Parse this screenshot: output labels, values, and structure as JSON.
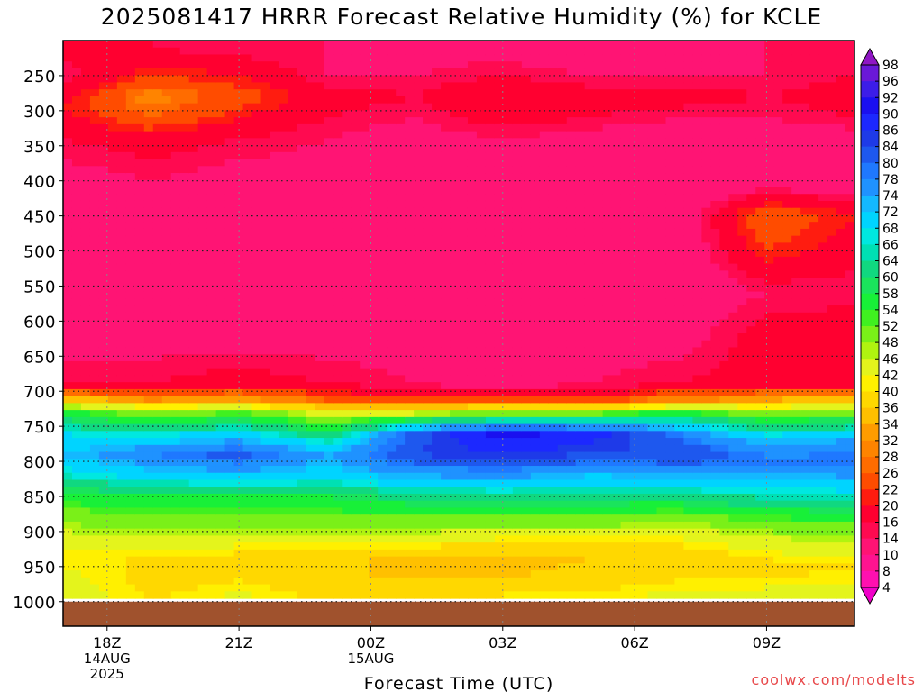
{
  "title": "2025081417 HRRR Forecast Relative Humidity (%) for KCLE",
  "credit": "coolwx.com/modelts",
  "colors": {
    "ground": "#a0522d",
    "frame": "#000000",
    "grid": "#666666"
  },
  "chart_data": {
    "type": "heatmap",
    "title": "2025081417 HRRR Forecast Relative Humidity (%) for KCLE",
    "xlabel": "Forecast Time (UTC)",
    "ylabel": "",
    "x_range_hours": [
      17,
      35
    ],
    "y_range_hpa": [
      1035,
      200
    ],
    "y_ticks": [
      250,
      300,
      350,
      400,
      450,
      500,
      550,
      600,
      650,
      700,
      750,
      800,
      850,
      900,
      950,
      1000
    ],
    "x_ticks": [
      {
        "hour": 18,
        "label": "18Z",
        "sub": [
          "14AUG",
          "2025"
        ]
      },
      {
        "hour": 21,
        "label": "21Z",
        "sub": []
      },
      {
        "hour": 24,
        "label": "00Z",
        "sub": [
          "15AUG"
        ]
      },
      {
        "hour": 27,
        "label": "03Z",
        "sub": []
      },
      {
        "hour": 30,
        "label": "06Z",
        "sub": []
      },
      {
        "hour": 33,
        "label": "09Z",
        "sub": []
      }
    ],
    "surface_pressure_hpa": 1000,
    "colorbar_levels": [
      98,
      96,
      92,
      90,
      86,
      84,
      80,
      78,
      74,
      72,
      68,
      66,
      64,
      60,
      58,
      54,
      52,
      48,
      46,
      42,
      40,
      36,
      34,
      32,
      28,
      26,
      22,
      20,
      16,
      14,
      10,
      8,
      4
    ],
    "colorbar_colors": [
      "#8f16c4",
      "#6a18d8",
      "#3c1de8",
      "#1a10f0",
      "#1c28ff",
      "#1e3ae8",
      "#1e58ee",
      "#1f78ff",
      "#1f92ff",
      "#14b8ff",
      "#00d4ff",
      "#00e8e0",
      "#00e0b4",
      "#10d880",
      "#1ae45c",
      "#18f038",
      "#40f020",
      "#7af018",
      "#b0f410",
      "#e4f41c",
      "#fff000",
      "#ffd800",
      "#ffc000",
      "#ff9c00",
      "#ff8400",
      "#ff6c00",
      "#ff4c00",
      "#ff1c10",
      "#ff0030",
      "#ff0a50",
      "#ff1474",
      "#ff1490",
      "#ff10b0",
      "#f000c8"
    ],
    "rh_profiles": [
      {
        "hour": 17.0,
        "points": [
          [
            210,
            18
          ],
          [
            250,
            14
          ],
          [
            290,
            20
          ],
          [
            340,
            16
          ],
          [
            400,
            12
          ],
          [
            450,
            12
          ],
          [
            500,
            12
          ],
          [
            560,
            10
          ],
          [
            620,
            12
          ],
          [
            690,
            16
          ],
          [
            710,
            34
          ],
          [
            730,
            56
          ],
          [
            760,
            68
          ],
          [
            790,
            72
          ],
          [
            820,
            66
          ],
          [
            850,
            56
          ],
          [
            880,
            50
          ],
          [
            910,
            44
          ],
          [
            940,
            40
          ],
          [
            970,
            44
          ],
          [
            1000,
            46
          ]
        ]
      },
      {
        "hour": 19.0,
        "points": [
          [
            210,
            16
          ],
          [
            250,
            22
          ],
          [
            280,
            30
          ],
          [
            310,
            26
          ],
          [
            340,
            18
          ],
          [
            400,
            14
          ],
          [
            450,
            12
          ],
          [
            500,
            12
          ],
          [
            560,
            12
          ],
          [
            620,
            12
          ],
          [
            690,
            16
          ],
          [
            710,
            30
          ],
          [
            730,
            48
          ],
          [
            760,
            66
          ],
          [
            790,
            78
          ],
          [
            820,
            70
          ],
          [
            850,
            58
          ],
          [
            880,
            50
          ],
          [
            910,
            46
          ],
          [
            940,
            40
          ],
          [
            970,
            38
          ],
          [
            1000,
            40
          ]
        ]
      },
      {
        "hour": 21.0,
        "points": [
          [
            210,
            14
          ],
          [
            250,
            20
          ],
          [
            280,
            24
          ],
          [
            310,
            20
          ],
          [
            340,
            16
          ],
          [
            400,
            12
          ],
          [
            450,
            10
          ],
          [
            500,
            10
          ],
          [
            560,
            12
          ],
          [
            620,
            12
          ],
          [
            690,
            18
          ],
          [
            710,
            32
          ],
          [
            735,
            56
          ],
          [
            760,
            70
          ],
          [
            790,
            82
          ],
          [
            820,
            72
          ],
          [
            850,
            58
          ],
          [
            880,
            52
          ],
          [
            910,
            44
          ],
          [
            940,
            38
          ],
          [
            970,
            40
          ],
          [
            1000,
            44
          ]
        ]
      },
      {
        "hour": 23.0,
        "points": [
          [
            210,
            14
          ],
          [
            250,
            14
          ],
          [
            280,
            18
          ],
          [
            310,
            16
          ],
          [
            340,
            14
          ],
          [
            400,
            12
          ],
          [
            450,
            12
          ],
          [
            500,
            14
          ],
          [
            560,
            12
          ],
          [
            620,
            12
          ],
          [
            690,
            16
          ],
          [
            710,
            24
          ],
          [
            735,
            46
          ],
          [
            760,
            60
          ],
          [
            790,
            74
          ],
          [
            820,
            70
          ],
          [
            850,
            58
          ],
          [
            880,
            52
          ],
          [
            910,
            44
          ],
          [
            940,
            38
          ],
          [
            970,
            36
          ],
          [
            1000,
            40
          ]
        ]
      },
      {
        "hour": 25.0,
        "points": [
          [
            210,
            12
          ],
          [
            250,
            14
          ],
          [
            280,
            16
          ],
          [
            310,
            14
          ],
          [
            340,
            12
          ],
          [
            400,
            10
          ],
          [
            450,
            14
          ],
          [
            500,
            12
          ],
          [
            560,
            14
          ],
          [
            620,
            12
          ],
          [
            690,
            14
          ],
          [
            710,
            20
          ],
          [
            735,
            50
          ],
          [
            760,
            82
          ],
          [
            790,
            84
          ],
          [
            820,
            74
          ],
          [
            850,
            62
          ],
          [
            880,
            52
          ],
          [
            910,
            44
          ],
          [
            940,
            34
          ],
          [
            970,
            36
          ],
          [
            1000,
            40
          ]
        ]
      },
      {
        "hour": 27.0,
        "points": [
          [
            210,
            12
          ],
          [
            250,
            16
          ],
          [
            280,
            20
          ],
          [
            310,
            18
          ],
          [
            340,
            14
          ],
          [
            400,
            12
          ],
          [
            450,
            12
          ],
          [
            500,
            12
          ],
          [
            560,
            12
          ],
          [
            620,
            12
          ],
          [
            690,
            12
          ],
          [
            710,
            20
          ],
          [
            735,
            56
          ],
          [
            760,
            92
          ],
          [
            790,
            86
          ],
          [
            820,
            76
          ],
          [
            850,
            62
          ],
          [
            880,
            52
          ],
          [
            910,
            42
          ],
          [
            940,
            34
          ],
          [
            970,
            36
          ],
          [
            1000,
            42
          ]
        ]
      },
      {
        "hour": 29.0,
        "points": [
          [
            210,
            10
          ],
          [
            250,
            14
          ],
          [
            280,
            18
          ],
          [
            310,
            16
          ],
          [
            340,
            12
          ],
          [
            400,
            10
          ],
          [
            450,
            10
          ],
          [
            500,
            10
          ],
          [
            560,
            12
          ],
          [
            620,
            12
          ],
          [
            690,
            14
          ],
          [
            710,
            20
          ],
          [
            735,
            56
          ],
          [
            760,
            88
          ],
          [
            790,
            84
          ],
          [
            820,
            72
          ],
          [
            850,
            62
          ],
          [
            880,
            52
          ],
          [
            910,
            42
          ],
          [
            940,
            36
          ],
          [
            970,
            38
          ],
          [
            1000,
            42
          ]
        ]
      },
      {
        "hour": 31.0,
        "points": [
          [
            210,
            12
          ],
          [
            250,
            14
          ],
          [
            280,
            18
          ],
          [
            310,
            14
          ],
          [
            340,
            12
          ],
          [
            400,
            10
          ],
          [
            450,
            10
          ],
          [
            500,
            10
          ],
          [
            560,
            10
          ],
          [
            620,
            12
          ],
          [
            690,
            16
          ],
          [
            710,
            28
          ],
          [
            735,
            60
          ],
          [
            760,
            78
          ],
          [
            790,
            84
          ],
          [
            820,
            74
          ],
          [
            850,
            62
          ],
          [
            880,
            50
          ],
          [
            910,
            42
          ],
          [
            940,
            36
          ],
          [
            970,
            40
          ],
          [
            1000,
            44
          ]
        ]
      },
      {
        "hour": 33.0,
        "points": [
          [
            210,
            14
          ],
          [
            250,
            14
          ],
          [
            280,
            16
          ],
          [
            310,
            14
          ],
          [
            340,
            12
          ],
          [
            400,
            10
          ],
          [
            450,
            26
          ],
          [
            500,
            22
          ],
          [
            560,
            14
          ],
          [
            620,
            18
          ],
          [
            690,
            18
          ],
          [
            710,
            32
          ],
          [
            740,
            56
          ],
          [
            770,
            72
          ],
          [
            800,
            80
          ],
          [
            830,
            70
          ],
          [
            860,
            62
          ],
          [
            890,
            50
          ],
          [
            920,
            44
          ],
          [
            950,
            38
          ],
          [
            980,
            42
          ],
          [
            1000,
            44
          ]
        ]
      },
      {
        "hour": 35.0,
        "points": [
          [
            210,
            16
          ],
          [
            250,
            16
          ],
          [
            280,
            18
          ],
          [
            310,
            16
          ],
          [
            340,
            12
          ],
          [
            400,
            10
          ],
          [
            450,
            20
          ],
          [
            500,
            18
          ],
          [
            560,
            14
          ],
          [
            620,
            20
          ],
          [
            690,
            18
          ],
          [
            710,
            34
          ],
          [
            740,
            58
          ],
          [
            770,
            74
          ],
          [
            800,
            80
          ],
          [
            830,
            72
          ],
          [
            860,
            62
          ],
          [
            890,
            52
          ],
          [
            920,
            44
          ],
          [
            950,
            40
          ],
          [
            980,
            42
          ],
          [
            1000,
            46
          ]
        ]
      }
    ]
  }
}
